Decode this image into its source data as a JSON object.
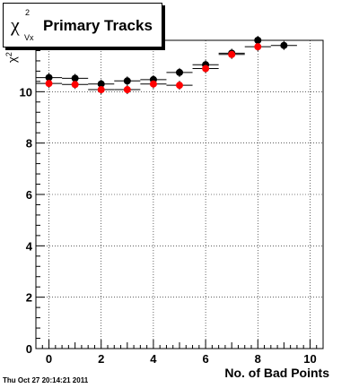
{
  "chart_data": {
    "type": "scatter",
    "title": "Primary Tracks",
    "title_symbol": "χ",
    "title_symbol_sup": "2",
    "title_symbol_sub": "Vx",
    "xlabel": "No. of Bad Points",
    "ylabel": "χ²",
    "xlim": [
      -0.5,
      10.5
    ],
    "ylim": [
      0,
      12.0
    ],
    "x_ticks": [
      0,
      2,
      4,
      6,
      8,
      10
    ],
    "y_ticks": [
      0,
      2,
      4,
      6,
      8,
      10
    ],
    "grid": true,
    "series": [
      {
        "color": "#000000",
        "points": [
          {
            "x": 0,
            "y": 10.55
          },
          {
            "x": 1,
            "y": 10.52
          },
          {
            "x": 2,
            "y": 10.3
          },
          {
            "x": 3,
            "y": 10.42
          },
          {
            "x": 4,
            "y": 10.47
          },
          {
            "x": 5,
            "y": 10.75
          },
          {
            "x": 6,
            "y": 11.05
          },
          {
            "x": 7,
            "y": 11.5
          },
          {
            "x": 8,
            "y": 12.0
          },
          {
            "x": 9,
            "y": 11.8
          }
        ]
      },
      {
        "color": "#ff0000",
        "points": [
          {
            "x": 0,
            "y": 10.32
          },
          {
            "x": 1,
            "y": 10.28
          },
          {
            "x": 2,
            "y": 10.08
          },
          {
            "x": 3,
            "y": 10.08
          },
          {
            "x": 4,
            "y": 10.3
          },
          {
            "x": 5,
            "y": 10.25
          },
          {
            "x": 6,
            "y": 10.9
          },
          {
            "x": 7,
            "y": 11.45
          },
          {
            "x": 8,
            "y": 11.75
          }
        ]
      }
    ]
  },
  "timestamp": "Thu Oct 27 20:14:21 2011"
}
